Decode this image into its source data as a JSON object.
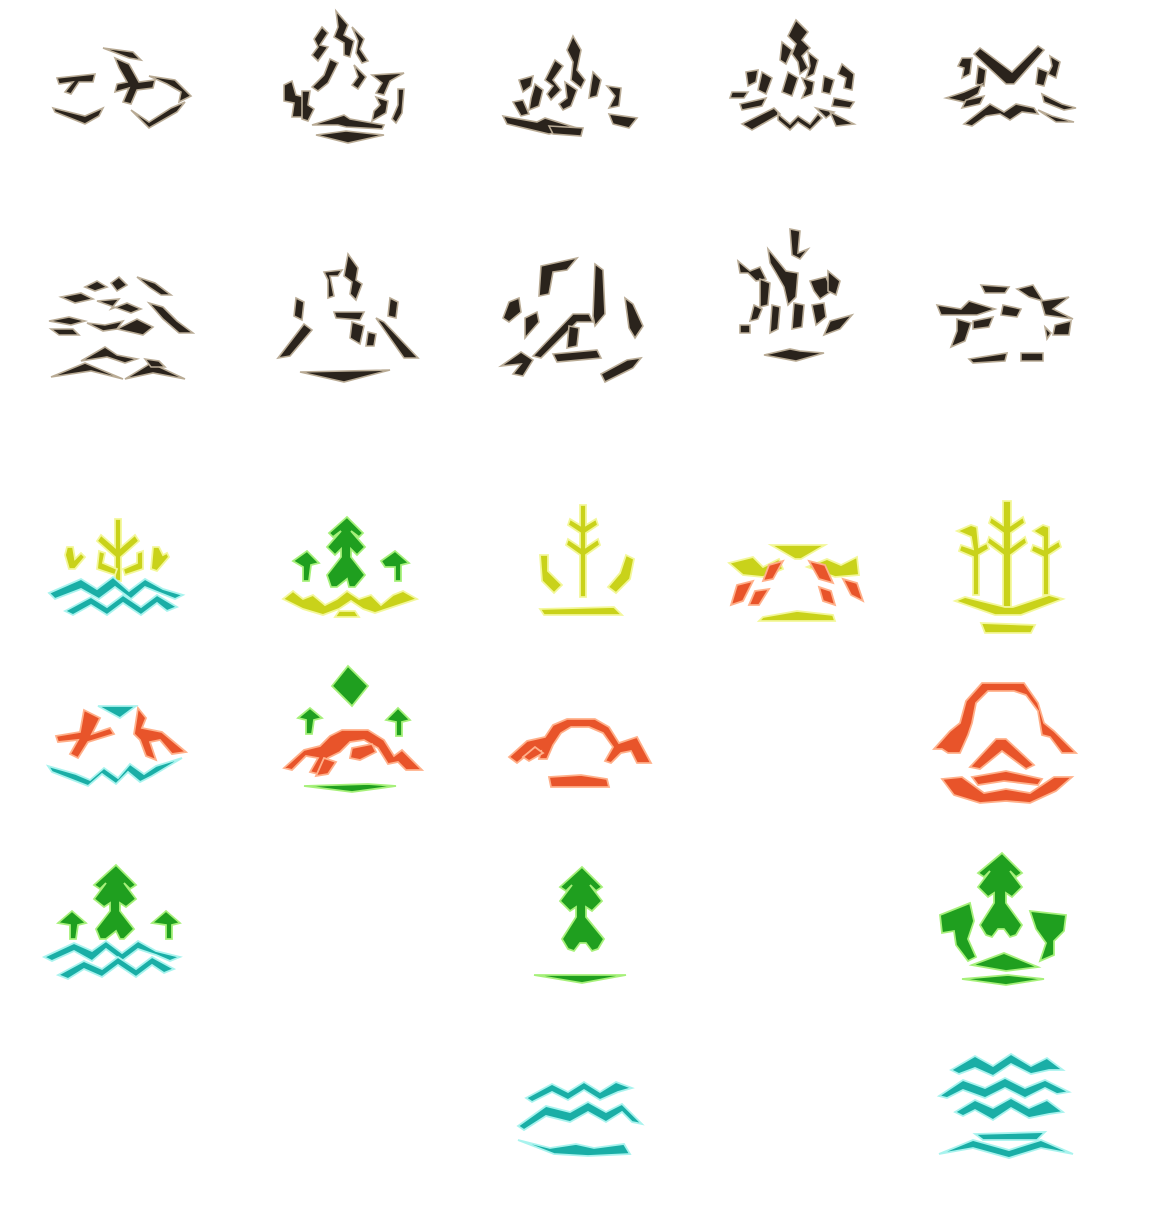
{
  "sheet": {
    "type": "rune sprite sheet",
    "background": "#ffffff"
  },
  "palette": {
    "dark": "#2a231c",
    "green": "#1f9f1f",
    "yellow": "#c9d21a",
    "orange": "#e8542a",
    "cyan": "#1aaea6"
  },
  "tiles": [
    {
      "id": "dark-rune-1",
      "color": "dark"
    },
    {
      "id": "dark-rune-2",
      "color": "dark"
    },
    {
      "id": "dark-rune-3",
      "color": "dark"
    },
    {
      "id": "dark-rune-4",
      "color": "dark"
    },
    {
      "id": "dark-rune-5",
      "color": "dark"
    },
    {
      "id": "dark-rune-6",
      "color": "dark"
    },
    {
      "id": "dark-rune-7",
      "color": "dark"
    },
    {
      "id": "dark-rune-8",
      "color": "dark"
    },
    {
      "id": "dark-rune-9",
      "color": "dark"
    },
    {
      "id": "dark-rune-10",
      "color": "dark"
    },
    {
      "id": "yellow-cyan-rune",
      "color": "yellow"
    },
    {
      "id": "green-yellow-rune",
      "color": "green"
    },
    {
      "id": "yellow-sprout-rune",
      "color": "yellow"
    },
    {
      "id": "orange-yellow-rune",
      "color": "orange"
    },
    {
      "id": "yellow-tree-rune",
      "color": "yellow"
    },
    {
      "id": "orange-cyan-rune",
      "color": "orange"
    },
    {
      "id": "green-orange-rune",
      "color": "green"
    },
    {
      "id": "orange-arch-rune",
      "color": "orange"
    },
    {
      "id": "orange-circle-rune",
      "color": "orange"
    },
    {
      "id": "green-cyan-rune",
      "color": "green"
    },
    {
      "id": "green-tree-rune",
      "color": "green"
    },
    {
      "id": "green-tree-triple-rune",
      "color": "green"
    },
    {
      "id": "cyan-wave-rune",
      "color": "cyan"
    },
    {
      "id": "cyan-wave-stack-rune",
      "color": "cyan"
    }
  ]
}
